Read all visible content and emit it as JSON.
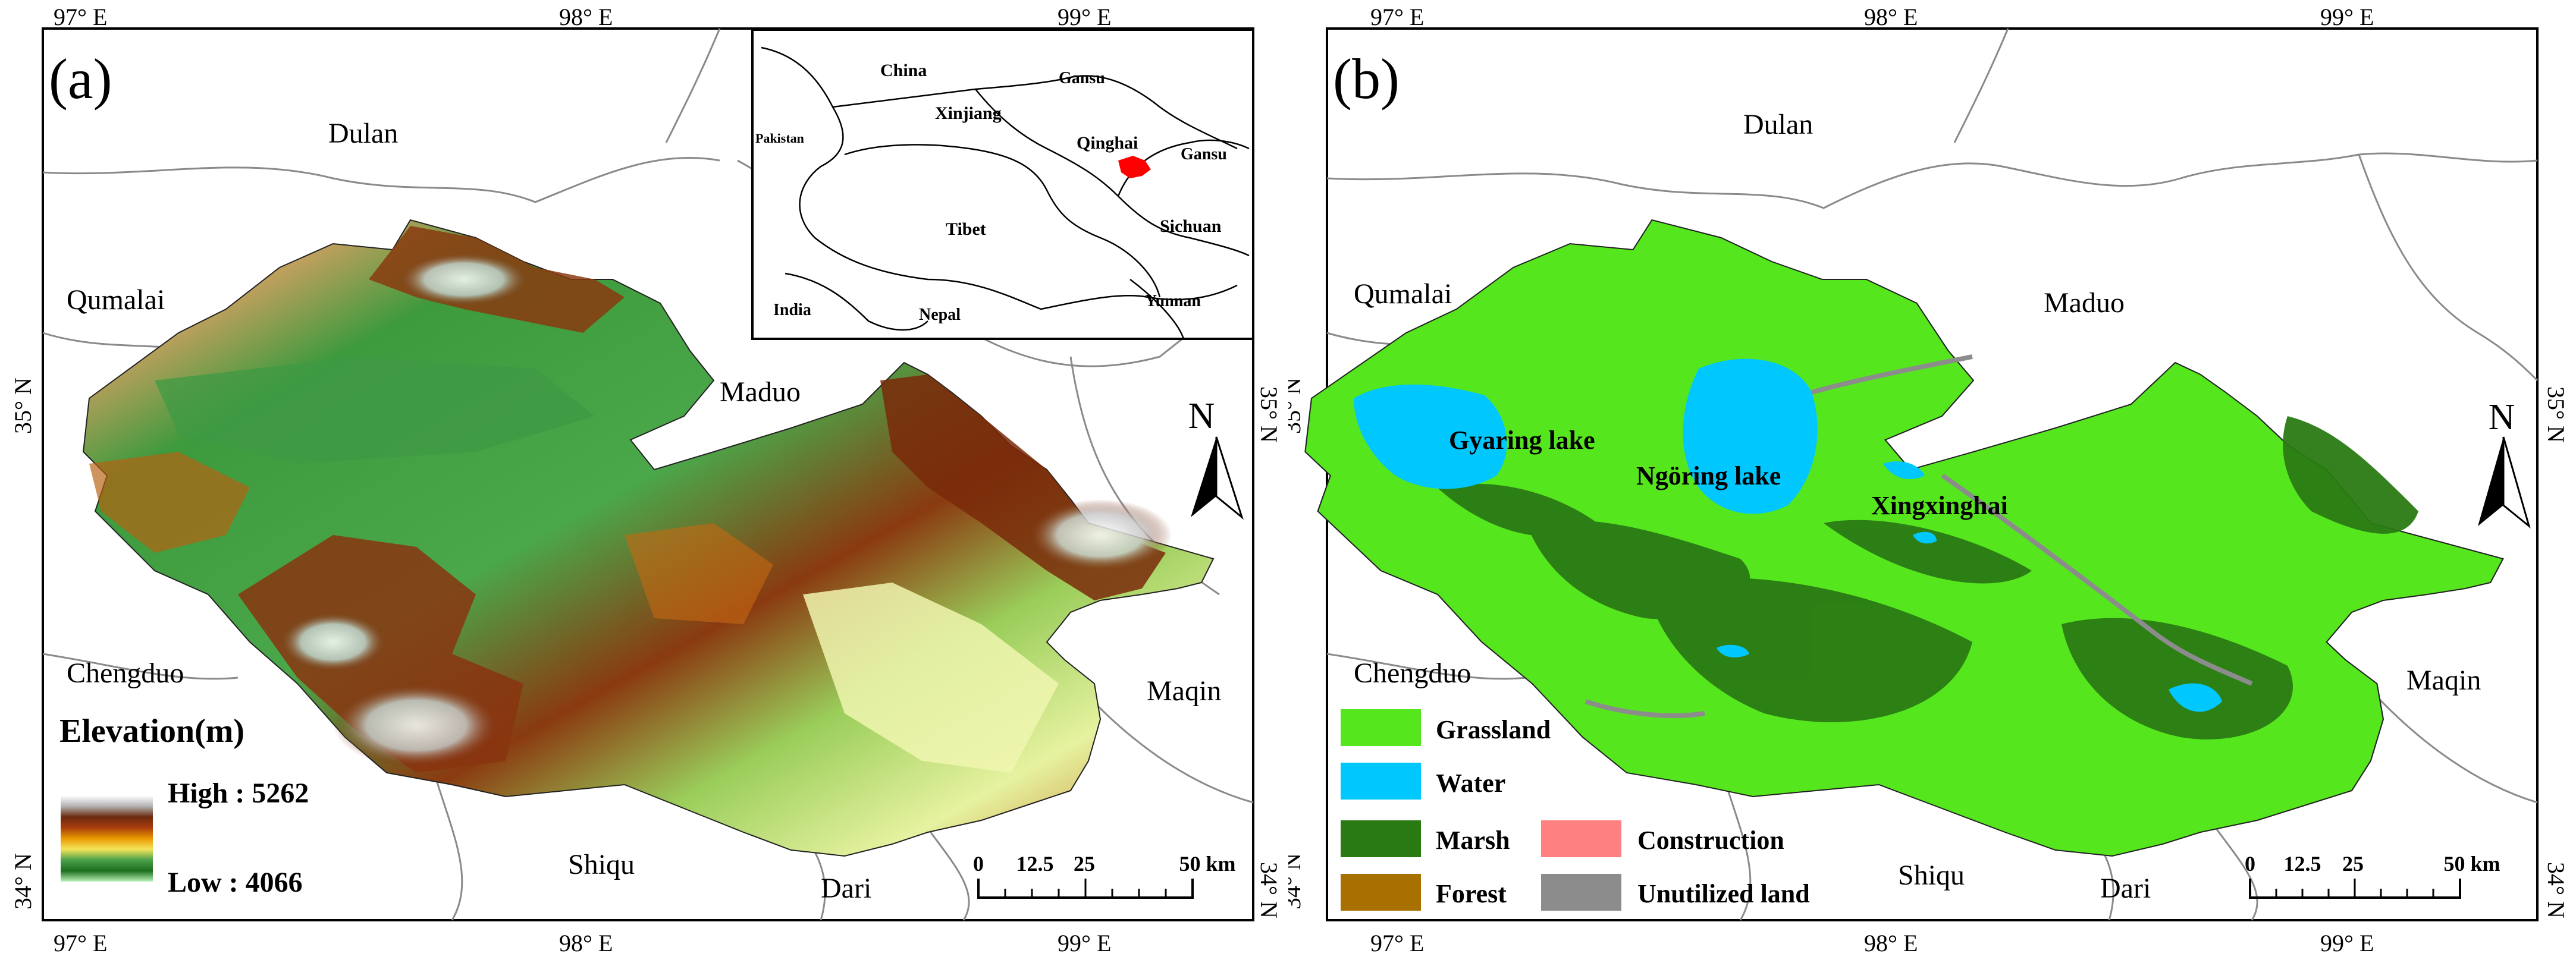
{
  "panel_a": {
    "label": "(a)",
    "coords": {
      "top": [
        "97° E",
        "98° E",
        "99° E"
      ],
      "bottom": [
        "97° E",
        "98° E",
        "99° E"
      ],
      "left": [
        "35° N",
        "34° N"
      ],
      "right": [
        "35° N",
        "34° N"
      ]
    },
    "places": [
      "Dulan",
      "Qumalai",
      "Maduo",
      "Chengduo",
      "Maqin",
      "Shiqu",
      "Dari"
    ],
    "north": "N",
    "inset": {
      "labels": [
        "China",
        "Gansu",
        "Xinjiang",
        "Pakistan",
        "Qinghai",
        "Gansu",
        "Tibet",
        "Sichuan",
        "India",
        "Nepal",
        "Yunnan"
      ],
      "highlight_color": "#ff0000"
    },
    "legend": {
      "title": "Elevation(m)",
      "high": "High : 5262",
      "low": "Low : 4066",
      "ramp": [
        "#ffffff",
        "#b3b3b3",
        "#6b2a10",
        "#a83c0c",
        "#e99a00",
        "#f4e45a",
        "#4aa04a",
        "#1d6e1d",
        "#b8f2b8"
      ]
    },
    "scale": {
      "ticks": [
        "0",
        "12.5",
        "25",
        "50 km"
      ]
    }
  },
  "panel_b": {
    "label": "(b)",
    "coords": {
      "top": [
        "97° E",
        "98° E",
        "99° E"
      ],
      "bottom": [
        "97° E",
        "98° E",
        "99° E"
      ],
      "left": [
        "35° N",
        "34° N"
      ],
      "right": [
        "35° N",
        "34° N"
      ]
    },
    "places": [
      "Dulan",
      "Qumalai",
      "Maduo",
      "Chengduo",
      "Maqin",
      "Shiqu",
      "Dari"
    ],
    "lakes": [
      "Gyaring lake",
      "Ngöring lake",
      "Xingxinghai"
    ],
    "north": "N",
    "legend": [
      {
        "label": "Grassland",
        "color": "#55e61e"
      },
      {
        "label": "Water",
        "color": "#00c8ff"
      },
      {
        "label": "Marsh",
        "color": "#2a7a14"
      },
      {
        "label": "Construction",
        "color": "#ff8080"
      },
      {
        "label": "Forest",
        "color": "#a87000"
      },
      {
        "label": "Unutilized land",
        "color": "#8c8c8c"
      }
    ],
    "scale": {
      "ticks": [
        "0",
        "12.5",
        "25",
        "50 km"
      ]
    }
  }
}
